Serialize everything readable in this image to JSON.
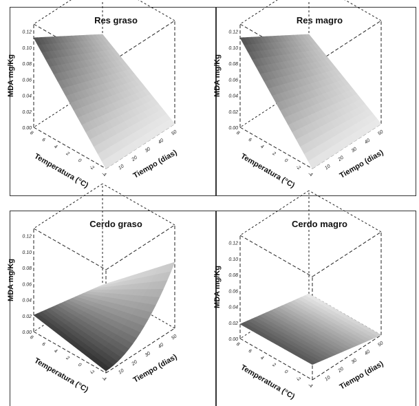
{
  "chart_data": [
    {
      "type": "surface3d",
      "title": "Res graso",
      "zlabel": "MDA mg/Kg",
      "xlabel": "Temperatura (°C)",
      "ylabel": "Tiempo (dias)",
      "z_ticks": [
        "0.00",
        "0.02",
        "0.04",
        "0.06",
        "0.08",
        "0.10",
        "0.12"
      ],
      "x_ticks": [
        "8",
        "6",
        "4",
        "2",
        "0",
        "-2",
        "-4"
      ],
      "y_ticks": [
        "10",
        "20",
        "30",
        "40",
        "50"
      ],
      "surface": {
        "z_at_high_temp_long_time": 0.11,
        "z_at_low_temp_short_time": 0.0,
        "shape": "plane"
      }
    },
    {
      "type": "surface3d",
      "title": "Res magro",
      "zlabel": "MDA mg/Kg",
      "xlabel": "Temperatura (°C)",
      "ylabel": "Tiempo (dias)",
      "z_ticks": [
        "0.00",
        "0.02",
        "0.04",
        "0.06",
        "0.08",
        "0.10",
        "0.12"
      ],
      "x_ticks": [
        "8",
        "6",
        "4",
        "2",
        "0",
        "-2",
        "-4"
      ],
      "y_ticks": [
        "10",
        "20",
        "30",
        "40",
        "50"
      ],
      "surface": {
        "z_at_high_temp_long_time": 0.11,
        "z_at_low_temp_short_time": 0.0,
        "shape": "plane"
      }
    },
    {
      "type": "surface3d",
      "title": "Cerdo graso",
      "zlabel": "MDA mg/Kg",
      "xlabel": "Temperatura (°C)",
      "ylabel": "Tiempo (dias)",
      "z_ticks": [
        "0.00",
        "0.02",
        "0.04",
        "0.06",
        "0.08",
        "0.10",
        "0.12"
      ],
      "x_ticks": [
        "8",
        "6",
        "4",
        "2",
        "0",
        "-2",
        "-4"
      ],
      "y_ticks": [
        "10",
        "20",
        "30",
        "40",
        "50"
      ],
      "surface": {
        "z_corner_high_temp_short_time": 0.02,
        "z_minimum": 0.0,
        "z_corner_low_temp_long_time": 0.09,
        "shape": "bowl"
      }
    },
    {
      "type": "surface3d",
      "title": "Cerdo magro",
      "zlabel": "MDA mg/Kg",
      "xlabel": "Temperatura (°C)",
      "ylabel": "Tiempo (dias)",
      "z_ticks": [
        "0.00",
        "0.02",
        "0.04",
        "0.06",
        "0.08",
        "0.10",
        "0.12"
      ],
      "x_ticks": [
        "8",
        "6",
        "4",
        "2",
        "0",
        "-2",
        "-4"
      ],
      "y_ticks": [
        "10",
        "20",
        "30",
        "40",
        "50"
      ],
      "surface": {
        "z_corner_high_temp_short_time": 0.02,
        "z_peak": 0.02,
        "z_corner_low_temp_long_time": 0.0,
        "shape": "dome"
      }
    }
  ]
}
